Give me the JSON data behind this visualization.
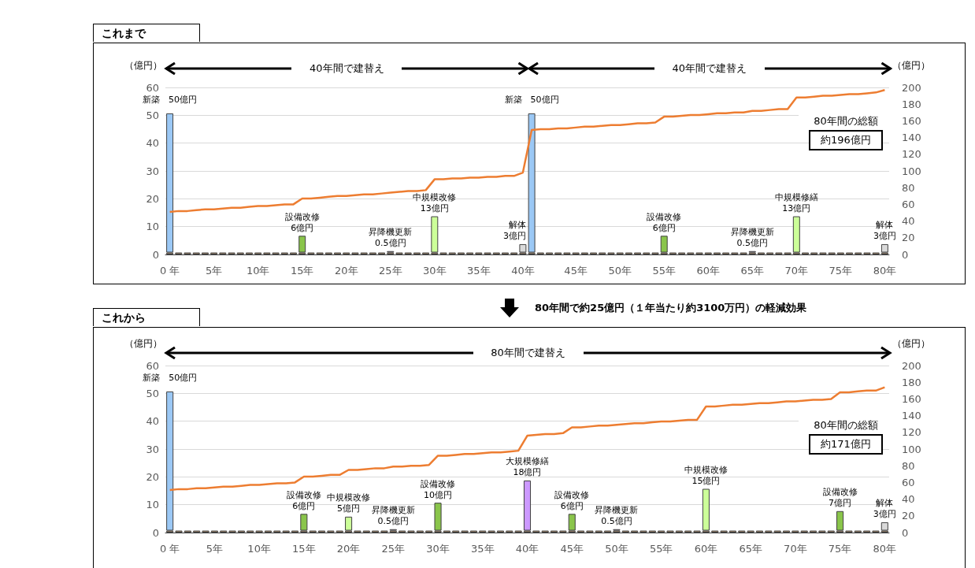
{
  "chart_data": [
    {
      "type": "bar",
      "title": "これまで",
      "ylabel": "（億円）",
      "y2label": "（億円）",
      "stacked": true,
      "grid": "y",
      "marker": "none",
      "annotations": [
        "40年間で建替え",
        "40年間で建替え",
        "80年間の総額",
        "約196億円"
      ],
      "categories": [
        "0 年",
        null,
        null,
        null,
        null,
        "5年",
        null,
        null,
        null,
        null,
        "10年",
        null,
        null,
        null,
        null,
        "15年",
        null,
        null,
        null,
        null,
        "20年",
        null,
        null,
        null,
        null,
        "25年",
        null,
        null,
        null,
        null,
        "30年",
        null,
        null,
        null,
        null,
        "35年",
        null,
        null,
        null,
        null,
        "40年",
        null,
        null,
        null,
        null,
        null,
        "45年",
        null,
        null,
        null,
        null,
        "50年",
        null,
        null,
        null,
        null,
        "55年",
        null,
        null,
        null,
        null,
        "60年",
        null,
        null,
        null,
        null,
        "65年",
        null,
        null,
        null,
        null,
        "70年",
        null,
        null,
        null,
        null,
        "75年",
        null,
        null,
        null,
        null,
        "80年"
      ],
      "ylim": [
        0,
        60
      ],
      "yticks": [
        0,
        10,
        20,
        30,
        40,
        50,
        60
      ],
      "y2lim": [
        0,
        200
      ],
      "y2ticks": [
        0,
        20,
        40,
        60,
        80,
        100,
        120,
        140,
        160,
        180,
        200
      ],
      "series": [
        {
          "color": "#c9a47e",
          "values": [
            0.7,
            0.7,
            0.7,
            0.7,
            0.7,
            0.7,
            0.7,
            0.7,
            0.7,
            0.7,
            0.7,
            0.7,
            0.7,
            0.7,
            0.7,
            0.7,
            0.7,
            0.7,
            0.7,
            0.7,
            0.7,
            0.7,
            0.7,
            0.7,
            0.7,
            0.7,
            0.7,
            0.7,
            0.7,
            0.7,
            0.7,
            0.7,
            0.7,
            0.7,
            0.7,
            0.7,
            0.7,
            0.7,
            0.7,
            0.7,
            0.7,
            0.7,
            0.7,
            0.7,
            0.7,
            0.7,
            0.7,
            0.7,
            0.7,
            0.7,
            0.7,
            0.7,
            0.7,
            0.7,
            0.7,
            0.7,
            0.7,
            0.7,
            0.7,
            0.7,
            0.7,
            0.7,
            0.7,
            0.7,
            0.7,
            0.7,
            0.7,
            0.7,
            0.7,
            0.7,
            0.7,
            0.7,
            0.7,
            0.7,
            0.7,
            0.7,
            0.7,
            0.7,
            0.7,
            0.7,
            0.7,
            0.7
          ]
        },
        {
          "values": [
            50,
            null,
            null,
            null,
            null,
            null,
            null,
            null,
            null,
            null,
            null,
            null,
            null,
            null,
            null,
            6,
            null,
            null,
            null,
            null,
            null,
            null,
            null,
            null,
            null,
            0.5,
            null,
            null,
            null,
            null,
            13,
            null,
            null,
            null,
            null,
            null,
            null,
            null,
            null,
            null,
            3,
            50,
            null,
            null,
            null,
            null,
            null,
            null,
            null,
            null,
            null,
            null,
            null,
            null,
            null,
            null,
            6,
            null,
            null,
            null,
            null,
            null,
            null,
            null,
            null,
            null,
            0.5,
            null,
            null,
            null,
            null,
            13,
            null,
            null,
            null,
            null,
            null,
            null,
            null,
            null,
            null,
            3
          ],
          "colors": [
            "#9bc8f5",
            null,
            null,
            null,
            null,
            null,
            null,
            null,
            null,
            null,
            null,
            null,
            null,
            null,
            null,
            "#8ac54b",
            null,
            null,
            null,
            null,
            null,
            null,
            null,
            null,
            null,
            "#dcb4e6",
            null,
            null,
            null,
            null,
            "#ccff99",
            null,
            null,
            null,
            null,
            null,
            null,
            null,
            null,
            null,
            "#d9d9d9",
            "#9bc8f5",
            null,
            null,
            null,
            null,
            null,
            null,
            null,
            null,
            null,
            null,
            null,
            null,
            null,
            null,
            "#8ac54b",
            null,
            null,
            null,
            null,
            null,
            null,
            null,
            null,
            null,
            "#dcb4e6",
            null,
            null,
            null,
            null,
            "#ccff99",
            null,
            null,
            null,
            null,
            null,
            null,
            null,
            null,
            null,
            "#d9d9d9"
          ],
          "value_labels": [
            "新築　50億円",
            null,
            null,
            null,
            null,
            null,
            null,
            null,
            null,
            null,
            null,
            null,
            null,
            null,
            null,
            "設備改修\n6億円",
            null,
            null,
            null,
            null,
            null,
            null,
            null,
            null,
            null,
            "昇降機更新\n0.5億円",
            null,
            null,
            null,
            null,
            "中規模改修\n13億円",
            null,
            null,
            null,
            null,
            null,
            null,
            null,
            null,
            null,
            "解体\n3億円",
            "新築　50億円",
            null,
            null,
            null,
            null,
            null,
            null,
            null,
            null,
            null,
            null,
            null,
            null,
            null,
            null,
            "設備改修\n6億円",
            null,
            null,
            null,
            null,
            null,
            null,
            null,
            null,
            null,
            "昇降機更新\n0.5億円",
            null,
            null,
            null,
            null,
            "中規模修繕\n13億円",
            null,
            null,
            null,
            null,
            null,
            null,
            null,
            null,
            null,
            "解体\n3億円"
          ]
        },
        {
          "type": "line",
          "axis": "y2",
          "color": "#ed7d31",
          "values": [
            51,
            52,
            52,
            53,
            54,
            54,
            55,
            56,
            56,
            57,
            58,
            58,
            59,
            60,
            60,
            67,
            67,
            68,
            69,
            70,
            70,
            71,
            72,
            72,
            73,
            74,
            75,
            76,
            76,
            77,
            90,
            90,
            91,
            91,
            92,
            92,
            93,
            93,
            94,
            94,
            98,
            149,
            150,
            150,
            151,
            151,
            152,
            153,
            153,
            154,
            155,
            155,
            156,
            157,
            157,
            158,
            165,
            165,
            166,
            167,
            167,
            168,
            169,
            169,
            170,
            170,
            172,
            172,
            173,
            174,
            174,
            188,
            188,
            189,
            190,
            190,
            191,
            192,
            192,
            193,
            194,
            197
          ]
        }
      ]
    },
    {
      "type": "bar",
      "title": "これから",
      "subtitle": "80年間で約25億円（１年当たり約3100万円）の軽減効果",
      "ylabel": "（億円）",
      "y2label": "（億円）",
      "stacked": true,
      "grid": "y",
      "marker": "none",
      "annotations": [
        "80年間で建替え",
        "80年間の総額",
        "約171億円"
      ],
      "categories": [
        "0 年",
        null,
        null,
        null,
        null,
        "5年",
        null,
        null,
        null,
        null,
        "10年",
        null,
        null,
        null,
        null,
        "15年",
        null,
        null,
        null,
        null,
        "20年",
        null,
        null,
        null,
        null,
        "25年",
        null,
        null,
        null,
        null,
        "30年",
        null,
        null,
        null,
        null,
        "35年",
        null,
        null,
        null,
        null,
        "40年",
        null,
        null,
        null,
        null,
        "45年",
        null,
        null,
        null,
        null,
        "50年",
        null,
        null,
        null,
        null,
        "55年",
        null,
        null,
        null,
        null,
        "60年",
        null,
        null,
        null,
        null,
        "65年",
        null,
        null,
        null,
        null,
        "70年",
        null,
        null,
        null,
        null,
        "75年",
        null,
        null,
        null,
        null,
        "80年"
      ],
      "ylim": [
        0,
        60
      ],
      "yticks": [
        0,
        10,
        20,
        30,
        40,
        50,
        60
      ],
      "y2lim": [
        0,
        200
      ],
      "y2ticks": [
        0,
        20,
        40,
        60,
        80,
        100,
        120,
        140,
        160,
        180,
        200
      ],
      "series": [
        {
          "color": "#c9a47e",
          "values": [
            0.7,
            0.7,
            0.7,
            0.7,
            0.7,
            0.7,
            0.7,
            0.7,
            0.7,
            0.7,
            0.7,
            0.7,
            0.7,
            0.7,
            0.7,
            0.7,
            0.7,
            0.7,
            0.7,
            0.7,
            0.7,
            0.7,
            0.7,
            0.7,
            0.7,
            0.7,
            0.7,
            0.7,
            0.7,
            0.7,
            0.7,
            0.7,
            0.7,
            0.7,
            0.7,
            0.7,
            0.7,
            0.7,
            0.7,
            0.7,
            0.7,
            0.7,
            0.7,
            0.7,
            0.7,
            0.7,
            0.7,
            0.7,
            0.7,
            0.7,
            0.7,
            0.7,
            0.7,
            0.7,
            0.7,
            0.7,
            0.7,
            0.7,
            0.7,
            0.7,
            0.7,
            0.7,
            0.7,
            0.7,
            0.7,
            0.7,
            0.7,
            0.7,
            0.7,
            0.7,
            0.7,
            0.7,
            0.7,
            0.7,
            0.7,
            0.7,
            0.7,
            0.7,
            0.7,
            0.7,
            0.7
          ]
        },
        {
          "values": [
            50,
            null,
            null,
            null,
            null,
            null,
            null,
            null,
            null,
            null,
            null,
            null,
            null,
            null,
            null,
            6,
            null,
            null,
            null,
            null,
            5,
            null,
            null,
            null,
            null,
            0.5,
            null,
            null,
            null,
            null,
            10,
            null,
            null,
            null,
            null,
            null,
            null,
            null,
            null,
            null,
            18,
            null,
            null,
            null,
            null,
            6,
            null,
            null,
            null,
            null,
            0.5,
            null,
            null,
            null,
            null,
            null,
            null,
            null,
            null,
            null,
            15,
            null,
            null,
            null,
            null,
            null,
            null,
            null,
            null,
            null,
            null,
            null,
            null,
            null,
            null,
            7,
            null,
            null,
            null,
            null,
            3
          ],
          "colors": [
            "#9bc8f5",
            null,
            null,
            null,
            null,
            null,
            null,
            null,
            null,
            null,
            null,
            null,
            null,
            null,
            null,
            "#8ac54b",
            null,
            null,
            null,
            null,
            "#ccff99",
            null,
            null,
            null,
            null,
            "#dcb4e6",
            null,
            null,
            null,
            null,
            "#8ac54b",
            null,
            null,
            null,
            null,
            null,
            null,
            null,
            null,
            null,
            "#cc99ff",
            null,
            null,
            null,
            null,
            "#8ac54b",
            null,
            null,
            null,
            null,
            "#dcb4e6",
            null,
            null,
            null,
            null,
            null,
            null,
            null,
            null,
            null,
            "#ccff99",
            null,
            null,
            null,
            null,
            null,
            null,
            null,
            null,
            null,
            null,
            null,
            null,
            null,
            null,
            "#8ac54b",
            null,
            null,
            null,
            null,
            "#d9d9d9"
          ],
          "value_labels": [
            "新築　50億円",
            null,
            null,
            null,
            null,
            null,
            null,
            null,
            null,
            null,
            null,
            null,
            null,
            null,
            null,
            "設備改修\n6億円",
            null,
            null,
            null,
            null,
            "中規模改修\n5億円",
            null,
            null,
            null,
            null,
            "昇降機更新\n0.5億円",
            null,
            null,
            null,
            null,
            "設備改修\n10億円",
            null,
            null,
            null,
            null,
            null,
            null,
            null,
            null,
            null,
            "大規模修繕\n18億円",
            null,
            null,
            null,
            null,
            "設備改修\n6億円",
            null,
            null,
            null,
            null,
            "昇降機更新\n0.5億円",
            null,
            null,
            null,
            null,
            null,
            null,
            null,
            null,
            null,
            "中規模改修\n15億円",
            null,
            null,
            null,
            null,
            null,
            null,
            null,
            null,
            null,
            null,
            null,
            null,
            null,
            null,
            "設備改修\n7億円",
            null,
            null,
            null,
            null,
            "解体\n3億円"
          ]
        },
        {
          "type": "line",
          "axis": "y2",
          "color": "#ed7d31",
          "values": [
            51,
            52,
            52,
            53,
            53,
            54,
            55,
            55,
            56,
            57,
            57,
            58,
            59,
            59,
            60,
            67,
            67,
            68,
            69,
            69,
            75,
            75,
            76,
            77,
            77,
            79,
            79,
            80,
            80,
            81,
            92,
            92,
            93,
            94,
            94,
            95,
            96,
            96,
            97,
            98,
            116,
            117,
            118,
            118,
            119,
            126,
            126,
            127,
            128,
            128,
            129,
            130,
            131,
            131,
            132,
            133,
            133,
            134,
            135,
            135,
            151,
            151,
            152,
            153,
            153,
            154,
            155,
            155,
            156,
            157,
            157,
            158,
            159,
            159,
            160,
            168,
            168,
            169,
            170,
            170,
            174
          ]
        }
      ]
    }
  ]
}
